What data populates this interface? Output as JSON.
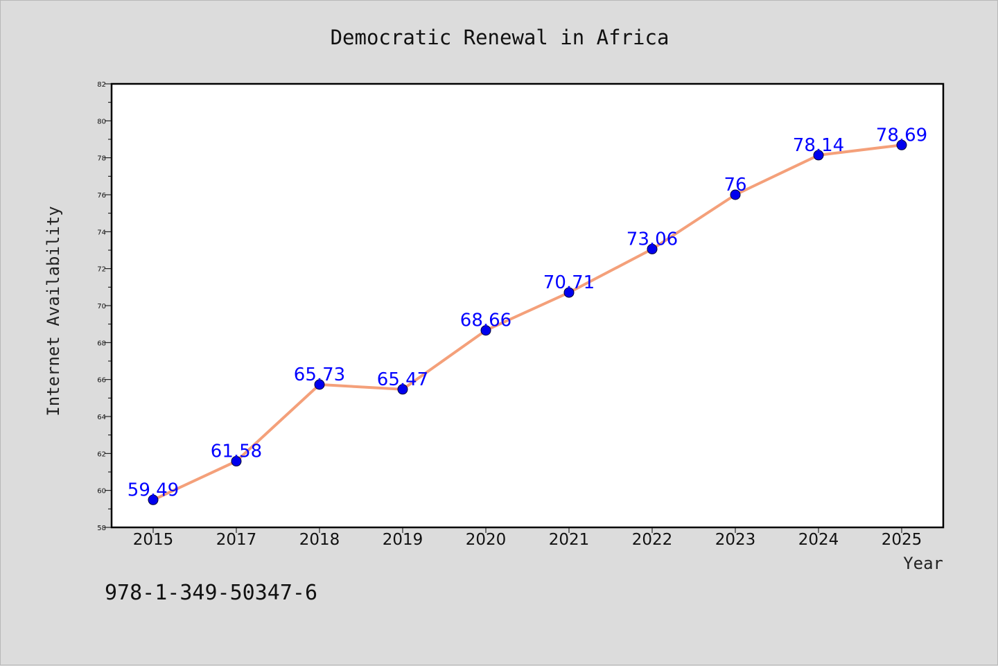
{
  "chart_data": {
    "type": "line",
    "title": "Democratic Renewal in Africa",
    "xlabel": "Year",
    "ylabel": "Internet Availability",
    "categories": [
      "2015",
      "2017",
      "2018",
      "2019",
      "2020",
      "2021",
      "2022",
      "2023",
      "2024",
      "2025"
    ],
    "series": [
      {
        "values": [
          59.49,
          61.58,
          65.73,
          65.47,
          68.66,
          70.71,
          73.06,
          76,
          78.14,
          78.69
        ],
        "data_labels": [
          "59.49",
          "61.58",
          "65.73",
          "65.47",
          "68.66",
          "70.71",
          "73.06",
          "76",
          "78.14",
          "78.69"
        ],
        "line_color": "#f4a07a",
        "marker_color": "#0000ee"
      }
    ],
    "ylim": [
      58,
      82
    ],
    "y_ticks": [
      "58",
      "60",
      "62",
      "64",
      "66",
      "68",
      "70",
      "72",
      "74",
      "76",
      "78",
      "80",
      "82"
    ],
    "grid": false,
    "legend": "none"
  },
  "footnote": "978-1-349-50347-6"
}
